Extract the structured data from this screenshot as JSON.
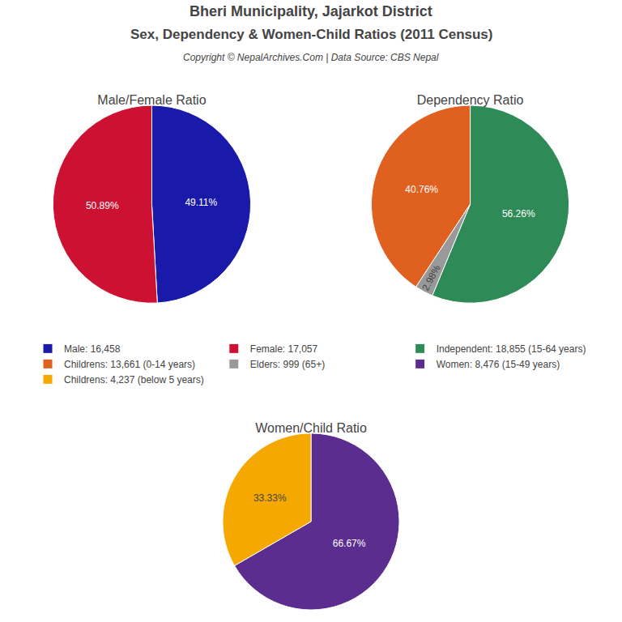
{
  "title": "Bheri Municipality, Jajarkot District",
  "subtitle": "Sex, Dependency & Women-Child Ratios (2011 Census)",
  "annotations": [
    "Copyright © NepalArchives.Com | Data Source: CBS Nepal"
  ],
  "chart_data": [
    {
      "type": "pie",
      "title": "Male/Female Ratio",
      "categories": [
        "Male: 16,458",
        "Female: 17,057"
      ],
      "values": [
        49.11,
        50.89
      ],
      "value_labels": [
        "49.11%",
        "50.89%"
      ],
      "colors": [
        "#1a1aaa",
        "#cc1133"
      ],
      "data_labels": true
    },
    {
      "type": "pie",
      "title": "Dependency Ratio",
      "categories": [
        "Independent: 18,855 (15-64 years)",
        "Childrens: 13,661 (0-14 years)",
        "Elders: 999 (65+)"
      ],
      "values": [
        56.26,
        40.76,
        2.98
      ],
      "value_labels": [
        "56.26%",
        "40.76%",
        "2.98%"
      ],
      "colors": [
        "#2e8b57",
        "#e06020",
        "#999999"
      ],
      "data_labels": true
    },
    {
      "type": "pie",
      "title": "Women/Child Ratio",
      "categories": [
        "Women: 8,476 (15-49 years)",
        "Childrens: 4,237 (below 5 years)"
      ],
      "values": [
        66.67,
        33.33
      ],
      "value_labels": [
        "66.67%",
        "33.33%"
      ],
      "colors": [
        "#5b2d8e",
        "#f5a800"
      ],
      "data_labels": true
    }
  ]
}
